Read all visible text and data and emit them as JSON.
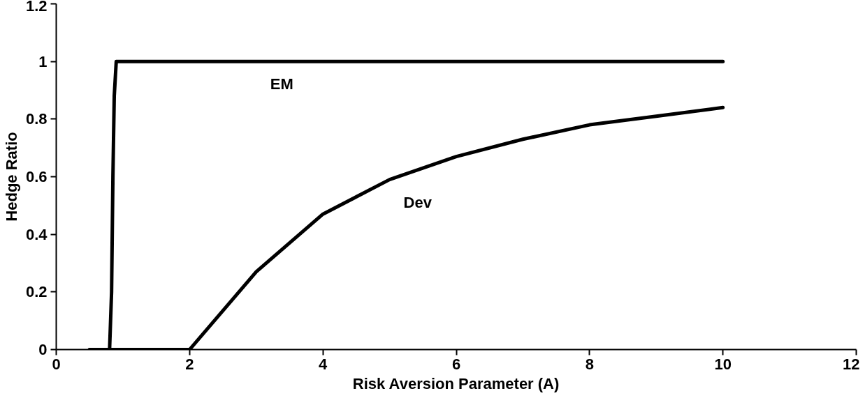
{
  "chart_data": {
    "type": "line",
    "xlabel": "Risk Aversion Parameter (A)",
    "ylabel": "Hedge Ratio",
    "xlim": [
      0,
      12
    ],
    "ylim": [
      0,
      1.2
    ],
    "xticks": [
      0,
      2,
      4,
      6,
      8,
      10,
      12
    ],
    "yticks": [
      0,
      0.2,
      0.4,
      0.6,
      0.8,
      1,
      1.2
    ],
    "grid": false,
    "marker": "none",
    "line_style": "solid",
    "series": [
      {
        "name": "EM",
        "color": "#000000",
        "x": [
          0.5,
          0.8,
          0.83,
          0.85,
          0.87,
          0.9,
          1,
          2,
          3,
          4,
          5,
          6,
          7,
          8,
          9,
          10
        ],
        "values": [
          0,
          0,
          0.2,
          0.6,
          0.88,
          1,
          1,
          1,
          1,
          1,
          1,
          1,
          1,
          1,
          1,
          1
        ]
      },
      {
        "name": "Dev",
        "color": "#000000",
        "x": [
          0.5,
          1,
          2,
          3,
          4,
          5,
          6,
          7,
          8,
          9,
          10
        ],
        "values": [
          0,
          0,
          0,
          0.27,
          0.47,
          0.59,
          0.67,
          0.73,
          0.78,
          0.81,
          0.84
        ]
      }
    ]
  }
}
